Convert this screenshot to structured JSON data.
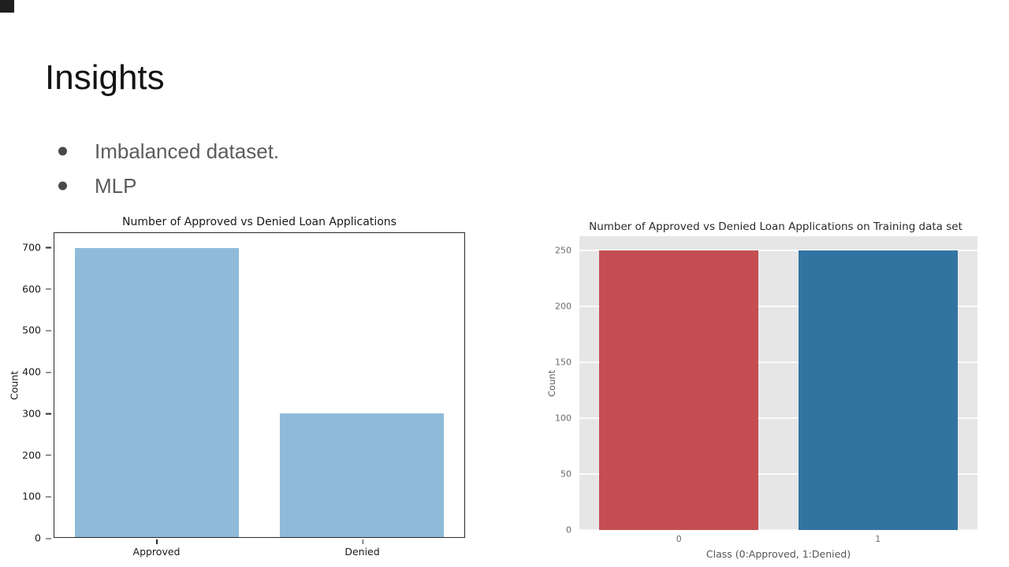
{
  "slide": {
    "title": "Insights",
    "bullets": [
      "Imbalanced dataset.",
      "MLP"
    ]
  },
  "chart_data": [
    {
      "type": "bar",
      "title": "Number of Approved vs Denied Loan Applications",
      "categories": [
        "Approved",
        "Denied"
      ],
      "values": [
        700,
        300
      ],
      "xlabel": "",
      "ylabel": "Count",
      "ylim": [
        0,
        736
      ],
      "yticks": [
        0,
        100,
        200,
        300,
        400,
        500,
        600,
        700
      ],
      "bar_width": 0.8,
      "bar_colors": [
        "#8fbbd9",
        "#8fbbd9"
      ],
      "grid": false,
      "plot_bg": "#ffffff",
      "legend": "none",
      "style": "plain-white-axes-box"
    },
    {
      "type": "bar",
      "title": "Number of Approved vs Denied Loan Applications on Training data set",
      "categories": [
        "0",
        "1"
      ],
      "values": [
        250,
        250
      ],
      "xlabel": "Class (0:Approved, 1:Denied)",
      "ylabel": "Count",
      "ylim": [
        0,
        263
      ],
      "yticks": [
        0,
        50,
        100,
        150,
        200,
        250
      ],
      "bar_width": 0.8,
      "bar_colors": [
        "#c44e52",
        "#3274a1"
      ],
      "grid": true,
      "plot_bg": "#e6e6e6",
      "legend": "none",
      "style": "gray-grid"
    }
  ]
}
